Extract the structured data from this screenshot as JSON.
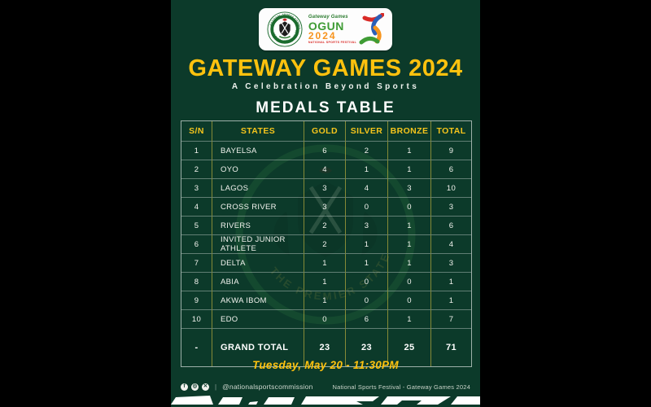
{
  "header": {
    "title": "GATEWAY GAMES 2024",
    "subtitle": "A Celebration Beyond Sports",
    "section_title": "MEDALS TABLE"
  },
  "logos": {
    "seal": {
      "ring_text_top": "NATIONAL SPORTS COMMISSION",
      "ring_text_bottom": "FEDERAL REPUBLIC OF NIGERIA"
    },
    "gateway": {
      "script": "Gateway Games",
      "name": "OGUN",
      "year": "2024",
      "tagline": "NATIONAL SPORTS FESTIVAL"
    }
  },
  "table": {
    "columns": [
      "S/N",
      "STATES",
      "GOLD",
      "SILVER",
      "BRONZE",
      "TOTAL"
    ],
    "rows": [
      [
        "1",
        "BAYELSA",
        "6",
        "2",
        "1",
        "9"
      ],
      [
        "2",
        "OYO",
        "4",
        "1",
        "1",
        "6"
      ],
      [
        "3",
        "LAGOS",
        "3",
        "4",
        "3",
        "10"
      ],
      [
        "4",
        "CROSS RIVER",
        "3",
        "0",
        "0",
        "3"
      ],
      [
        "5",
        "RIVERS",
        "2",
        "3",
        "1",
        "6"
      ],
      [
        "6",
        "INVITED JUNIOR ATHLETE",
        "2",
        "1",
        "1",
        "4"
      ],
      [
        "7",
        "DELTA",
        "1",
        "1",
        "1",
        "3"
      ],
      [
        "8",
        "ABIA",
        "1",
        "0",
        "0",
        "1"
      ],
      [
        "9",
        "AKWA IBOM",
        "1",
        "0",
        "0",
        "1"
      ],
      [
        "10",
        "EDO",
        "0",
        "6",
        "1",
        "7"
      ]
    ],
    "grand_total": [
      "-",
      "GRAND TOTAL",
      "23",
      "23",
      "25",
      "71"
    ]
  },
  "timestamp": "Tuesday, May 20 - 11:30PM",
  "footer": {
    "handle": "@nationalsportscommission",
    "right_text": "National Sports Festival - Gateway Games 2024"
  },
  "colors": {
    "background_green": "#0c3a2a",
    "gold": "#ffc20e",
    "table_border_yellow": "#c7b63f",
    "ogun_green": "#3f9c35",
    "ogun_orange": "#f7941d",
    "ogun_red": "#d92b27"
  }
}
